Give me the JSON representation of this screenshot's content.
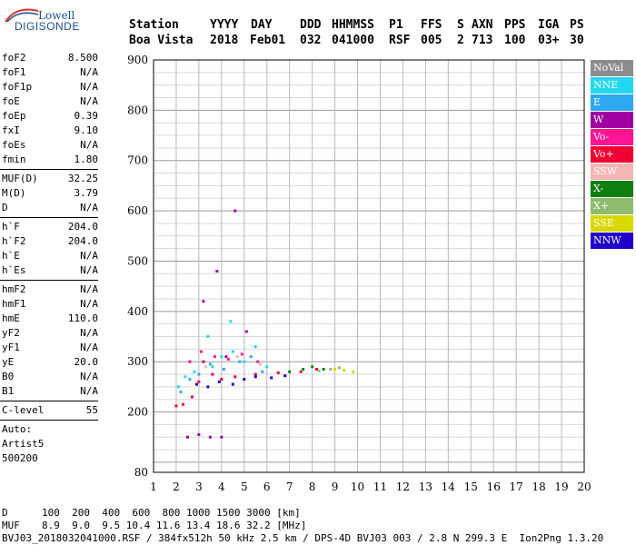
{
  "logo": {
    "line1": "Lowell",
    "line2": "DIGISONDE"
  },
  "header": {
    "labels": [
      "Station",
      "YYYY",
      "DAY",
      "DDD",
      "HHMMSS",
      "P1",
      "FFS",
      "S",
      "AXN",
      "PPS",
      "IGA",
      "PS"
    ],
    "values": [
      "Boa Vista",
      "2018",
      "Feb01",
      "032",
      "041000",
      "RSF",
      "005",
      "2",
      "713",
      "100",
      "03+",
      "30"
    ]
  },
  "params": {
    "group1": [
      {
        "k": "foF2",
        "v": "8.500"
      },
      {
        "k": "foF1",
        "v": "N/A"
      },
      {
        "k": "foF1p",
        "v": "N/A"
      },
      {
        "k": "foE",
        "v": "N/A"
      },
      {
        "k": "foEp",
        "v": "0.39"
      },
      {
        "k": "fxI",
        "v": "9.10"
      },
      {
        "k": "foEs",
        "v": "N/A"
      },
      {
        "k": "fmin",
        "v": "1.80"
      }
    ],
    "group2": [
      {
        "k": "MUF(D)",
        "v": "32.25"
      },
      {
        "k": "M(D)",
        "v": "3.79"
      },
      {
        "k": "D",
        "v": "N/A"
      }
    ],
    "group3": [
      {
        "k": "h`F",
        "v": "204.0"
      },
      {
        "k": "h`F2",
        "v": "204.0"
      },
      {
        "k": "h`E",
        "v": "N/A"
      },
      {
        "k": "h`Es",
        "v": "N/A"
      }
    ],
    "group4": [
      {
        "k": "hmF2",
        "v": "N/A"
      },
      {
        "k": "hmF1",
        "v": "N/A"
      },
      {
        "k": "hmE",
        "v": "110.0"
      },
      {
        "k": "yF2",
        "v": "N/A"
      },
      {
        "k": "yF1",
        "v": "N/A"
      },
      {
        "k": "yE",
        "v": "20.0"
      },
      {
        "k": "B0",
        "v": "N/A"
      },
      {
        "k": "B1",
        "v": "N/A"
      }
    ],
    "group5": [
      {
        "k": "C-level",
        "v": "55"
      }
    ],
    "auto": [
      "Auto:",
      "Artist5",
      "500200"
    ]
  },
  "legend": [
    {
      "label": "NoVal",
      "color": "#8c8c8c"
    },
    {
      "label": "NNE",
      "color": "#22d8ee"
    },
    {
      "label": "E",
      "color": "#2ea8f0"
    },
    {
      "label": "W",
      "color": "#a000a0"
    },
    {
      "label": "Vo-",
      "color": "#ff1493"
    },
    {
      "label": "Vo+",
      "color": "#ee0033"
    },
    {
      "label": "SSW",
      "color": "#f5b5b5"
    },
    {
      "label": "X-",
      "color": "#0f7f0f"
    },
    {
      "label": "X+",
      "color": "#8fbc6f"
    },
    {
      "label": "SSE",
      "color": "#d8d800"
    },
    {
      "label": "NNW",
      "color": "#2200cc"
    }
  ],
  "footer": {
    "d_label": "D",
    "d_values": "100  200  400  600  800 1000 1500 3000 [km]",
    "muf_label": "MUF",
    "muf_values": "8.9  9.0  9.5 10.4 11.6 13.4 18.6 32.2 [MHz]",
    "file_line": "BVJ03_2018032041000.RSF / 384fx512h 50 kHz 2.5 km / DPS-4D BVJ03 003 / 2.8 N 299.3 E  Ion2Png 1.3.20"
  },
  "chart_data": {
    "type": "scatter",
    "x_range": [
      1,
      20
    ],
    "y_range": [
      80,
      900
    ],
    "x_ticks": [
      "1",
      "2",
      "3",
      "4",
      "5",
      "6",
      "7",
      "8",
      "9",
      "10",
      "11",
      "12",
      "13",
      "14",
      "15",
      "16",
      "17",
      "18",
      "19",
      "20"
    ],
    "y_ticks": [
      "80",
      "200",
      "300",
      "400",
      "500",
      "600",
      "700",
      "800",
      "900"
    ],
    "grid": true,
    "legend_position": "right",
    "series": [
      {
        "name": "NNE",
        "points": [
          [
            2.1,
            250
          ],
          [
            2.4,
            270
          ],
          [
            2.8,
            280
          ],
          [
            3.2,
            300
          ],
          [
            3.6,
            290
          ],
          [
            4.0,
            310
          ],
          [
            4.5,
            320
          ],
          [
            5.0,
            300
          ],
          [
            5.5,
            330
          ],
          [
            6.0,
            290
          ],
          [
            3.4,
            350
          ],
          [
            4.4,
            380
          ]
        ]
      },
      {
        "name": "E",
        "points": [
          [
            2.2,
            240
          ],
          [
            2.6,
            265
          ],
          [
            3.0,
            275
          ],
          [
            3.5,
            295
          ],
          [
            4.1,
            285
          ],
          [
            4.8,
            300
          ],
          [
            5.3,
            310
          ],
          [
            5.8,
            280
          ]
        ]
      },
      {
        "name": "W",
        "points": [
          [
            2.5,
            150
          ],
          [
            3.0,
            155
          ],
          [
            3.5,
            150
          ],
          [
            4.0,
            150
          ],
          [
            3.2,
            420
          ],
          [
            3.8,
            480
          ],
          [
            4.6,
            600
          ],
          [
            4.2,
            310
          ],
          [
            5.1,
            360
          ]
        ]
      },
      {
        "name": "Vo-",
        "points": [
          [
            2.6,
            300
          ],
          [
            3.1,
            320
          ],
          [
            3.7,
            310
          ],
          [
            4.3,
            305
          ],
          [
            4.9,
            315
          ],
          [
            5.6,
            300
          ]
        ]
      },
      {
        "name": "Vo+",
        "points": [
          [
            2.0,
            212
          ],
          [
            2.3,
            215
          ],
          [
            2.7,
            230
          ],
          [
            3.0,
            260
          ],
          [
            3.2,
            300
          ],
          [
            3.6,
            275
          ],
          [
            4.0,
            265
          ],
          [
            4.6,
            270
          ],
          [
            5.5,
            275
          ],
          [
            6.5,
            278
          ],
          [
            7.5,
            280
          ],
          [
            8.2,
            285
          ]
        ]
      },
      {
        "name": "SSW",
        "points": [
          [
            3.3,
            290
          ],
          [
            4.7,
            310
          ],
          [
            5.7,
            295
          ]
        ]
      },
      {
        "name": "X-",
        "points": [
          [
            7.0,
            280
          ],
          [
            7.6,
            285
          ],
          [
            8.0,
            290
          ],
          [
            8.5,
            285
          ]
        ]
      },
      {
        "name": "X+",
        "points": [
          [
            8.3,
            282
          ],
          [
            8.8,
            285
          ],
          [
            9.2,
            288
          ]
        ]
      },
      {
        "name": "SSE",
        "points": [
          [
            9.0,
            285
          ],
          [
            9.4,
            283
          ],
          [
            9.8,
            280
          ]
        ]
      },
      {
        "name": "NNW",
        "points": [
          [
            2.9,
            255
          ],
          [
            3.4,
            250
          ],
          [
            3.9,
            260
          ],
          [
            4.5,
            255
          ],
          [
            5.0,
            265
          ],
          [
            5.5,
            270
          ],
          [
            6.2,
            268
          ],
          [
            6.8,
            272
          ]
        ]
      }
    ]
  }
}
